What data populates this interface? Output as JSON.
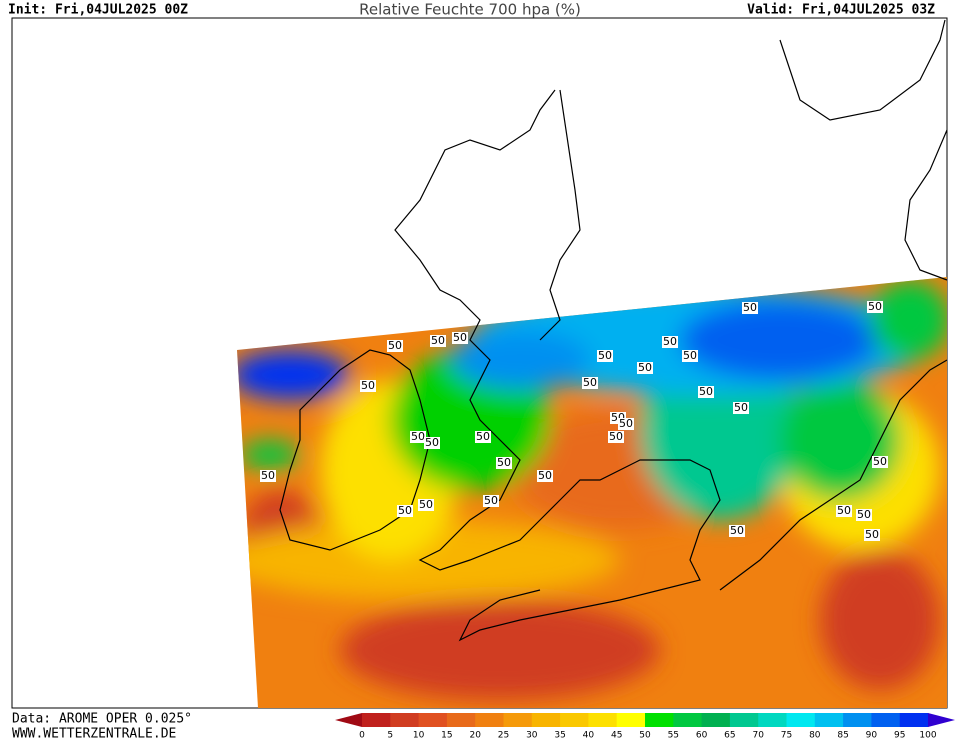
{
  "header": {
    "init": "Init: Fri,04JUL2025 00Z",
    "title": "Relative Feuchte 700 hpa (%)",
    "valid": "Valid: Fri,04JUL2025 03Z"
  },
  "footer": {
    "source": "Data: AROME OPER 0.025°",
    "website": "WWW.WETTERZENTRALE.DE"
  },
  "colorbar": {
    "labels": [
      0,
      5,
      10,
      15,
      20,
      25,
      30,
      35,
      40,
      45,
      50,
      55,
      60,
      65,
      70,
      75,
      80,
      85,
      90,
      95,
      100
    ],
    "colors": [
      "#a00a14",
      "#c0201c",
      "#d03c20",
      "#e05020",
      "#e86a1a",
      "#f08010",
      "#f59a0a",
      "#f8b400",
      "#fac800",
      "#fde000",
      "#ffff00",
      "#00e000",
      "#00c840",
      "#00b050",
      "#00c890",
      "#00d8c0",
      "#00e8f0",
      "#00c0f0",
      "#0090f0",
      "#0060f0",
      "#0030f0",
      "#3000d0"
    ]
  },
  "contour_labels": [
    "50",
    "50",
    "50",
    "50",
    "50",
    "50",
    "50",
    "50",
    "50",
    "50",
    "50",
    "50",
    "50",
    "50",
    "50",
    "50",
    "50",
    "50",
    "50",
    "50",
    "50",
    "50",
    "50",
    "50",
    "50",
    "50",
    "50",
    "50",
    "50",
    "50"
  ]
}
